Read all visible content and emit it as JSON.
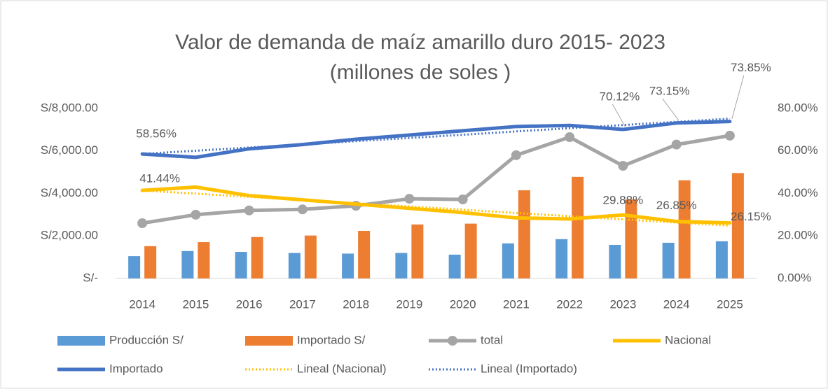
{
  "chart_data": {
    "type": "combo",
    "title": [
      "Valor de demanda de maíz amarillo duro 2015- 2023",
      "(millones de soles )"
    ],
    "categories": [
      "2014",
      "2015",
      "2016",
      "2017",
      "2018",
      "2019",
      "2020",
      "2021",
      "2022",
      "2023",
      "2024",
      "2025"
    ],
    "ylim": [
      0,
      8000
    ],
    "yticks": [
      {
        "value": 0,
        "label": "S/-"
      },
      {
        "value": 2000,
        "label": "S/2,000.00"
      },
      {
        "value": 4000,
        "label": "S/4,000.00"
      },
      {
        "value": 6000,
        "label": "S/6,000.00"
      },
      {
        "value": 8000,
        "label": "S/8,000.00"
      }
    ],
    "y2lim": [
      0,
      80
    ],
    "y2ticks": [
      {
        "value": 0,
        "label": "0.00%"
      },
      {
        "value": 20,
        "label": "20.00%"
      },
      {
        "value": 40,
        "label": "40.00%"
      },
      {
        "value": 60,
        "label": "60.00%"
      },
      {
        "value": 80,
        "label": "80.00%"
      }
    ],
    "series": [
      {
        "name": "Producción S/",
        "type": "bar",
        "color": "#5b9bd5",
        "values": [
          1050,
          1290,
          1250,
          1200,
          1170,
          1200,
          1120,
          1650,
          1850,
          1580,
          1680,
          1750
        ]
      },
      {
        "name": "Importado S/",
        "type": "bar",
        "color": "#ed7d31",
        "values": [
          1520,
          1710,
          1950,
          2020,
          2240,
          2540,
          2580,
          4150,
          4780,
          3720,
          4620,
          4960
        ]
      },
      {
        "name": "total",
        "type": "line",
        "marker": true,
        "color": "#a5a5a5",
        "values": [
          2600,
          3000,
          3200,
          3250,
          3420,
          3750,
          3720,
          5800,
          6650,
          5300,
          6300,
          6720
        ]
      },
      {
        "name": "Nacional",
        "type": "line",
        "axis": "y2",
        "color": "#ffc000",
        "values": [
          41.44,
          43,
          39,
          37,
          35,
          33,
          31,
          28.5,
          28,
          29.88,
          26.85,
          26.15
        ],
        "value_labels": [
          "41.44%",
          null,
          null,
          null,
          null,
          null,
          null,
          null,
          null,
          "29.88%",
          "26.85%",
          "26.15%"
        ]
      },
      {
        "name": "Importado",
        "type": "line",
        "axis": "y2",
        "color": "#4472c4",
        "values": [
          58.56,
          57,
          61,
          63,
          65.5,
          67.5,
          69.5,
          71.5,
          72,
          70.12,
          73.15,
          73.85
        ],
        "value_labels": [
          "58.56%",
          null,
          null,
          null,
          null,
          null,
          null,
          null,
          null,
          "70.12%",
          "73.15%",
          "73.85%"
        ]
      },
      {
        "name": "Lineal (Nacional)",
        "type": "line",
        "style": "dotted",
        "axis": "y2",
        "color": "#ffc000",
        "values": [
          41.4,
          39.9,
          38.4,
          36.9,
          35.4,
          33.9,
          32.4,
          30.8,
          29.3,
          27.8,
          26.3,
          24.8
        ]
      },
      {
        "name": "Lineal (Importado)",
        "type": "line",
        "style": "dotted",
        "axis": "y2",
        "color": "#4472c4",
        "values": [
          58.6,
          60.1,
          61.6,
          63.1,
          64.6,
          66.1,
          67.6,
          69.2,
          70.7,
          72.2,
          73.7,
          75.2
        ]
      }
    ]
  }
}
